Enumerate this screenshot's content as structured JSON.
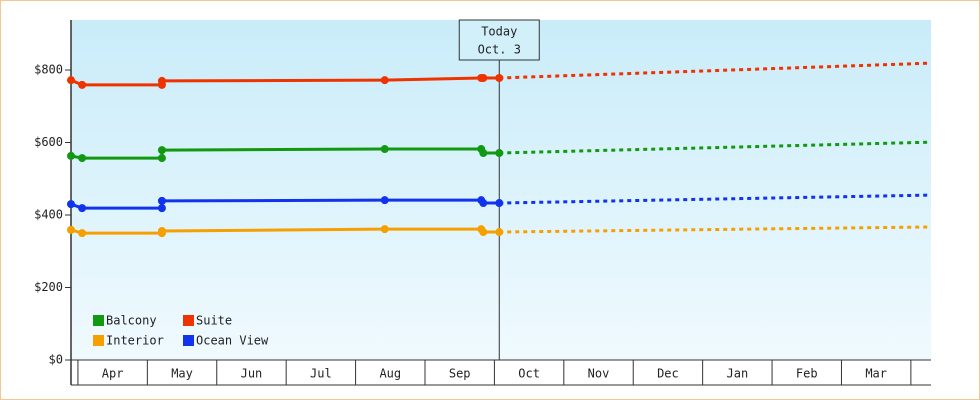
{
  "chart_data": {
    "type": "line",
    "x": [
      -0.1,
      0.06,
      1.21,
      1.21,
      4.42,
      5.81,
      5.84,
      6.07,
      12.29
    ],
    "series": [
      {
        "name": "Balcony",
        "color": "#119911",
        "values": [
          563,
          557,
          557,
          579,
          582,
          582,
          571,
          571,
          601
        ]
      },
      {
        "name": "Suite",
        "color": "#ee3300",
        "values": [
          772,
          759,
          759,
          770,
          772,
          778,
          778,
          778,
          819
        ]
      },
      {
        "name": "Interior",
        "color": "#f5a000",
        "values": [
          359,
          350,
          350,
          356,
          361,
          361,
          353,
          353,
          367
        ]
      },
      {
        "name": "Ocean View",
        "color": "#1133ee",
        "values": [
          430,
          419,
          419,
          439,
          441,
          441,
          433,
          433,
          455
        ]
      }
    ],
    "xlim": [
      -0.1,
      12.29
    ],
    "xticks": [
      {
        "value": 0.5,
        "label": "Apr"
      },
      {
        "value": 1.5,
        "label": "May"
      },
      {
        "value": 2.5,
        "label": "Jun"
      },
      {
        "value": 3.5,
        "label": "Jul"
      },
      {
        "value": 4.5,
        "label": "Aug"
      },
      {
        "value": 5.5,
        "label": "Sep"
      },
      {
        "value": 6.5,
        "label": "Oct"
      },
      {
        "value": 7.5,
        "label": "Nov"
      },
      {
        "value": 8.5,
        "label": "Dec"
      },
      {
        "value": 9.5,
        "label": "Jan"
      },
      {
        "value": 10.5,
        "label": "Feb"
      },
      {
        "value": 11.5,
        "label": "Mar"
      }
    ],
    "ylim": [
      0,
      938
    ],
    "yticks": [
      {
        "value": 0,
        "label": "$0"
      },
      {
        "value": 200,
        "label": "$200"
      },
      {
        "value": 400,
        "label": "$400"
      },
      {
        "value": 600,
        "label": "$600"
      },
      {
        "value": 800,
        "label": "$800"
      }
    ],
    "annotation": {
      "x": 6.07,
      "lines": [
        "Today",
        "Oct. 3"
      ]
    },
    "legend": "lower left"
  }
}
